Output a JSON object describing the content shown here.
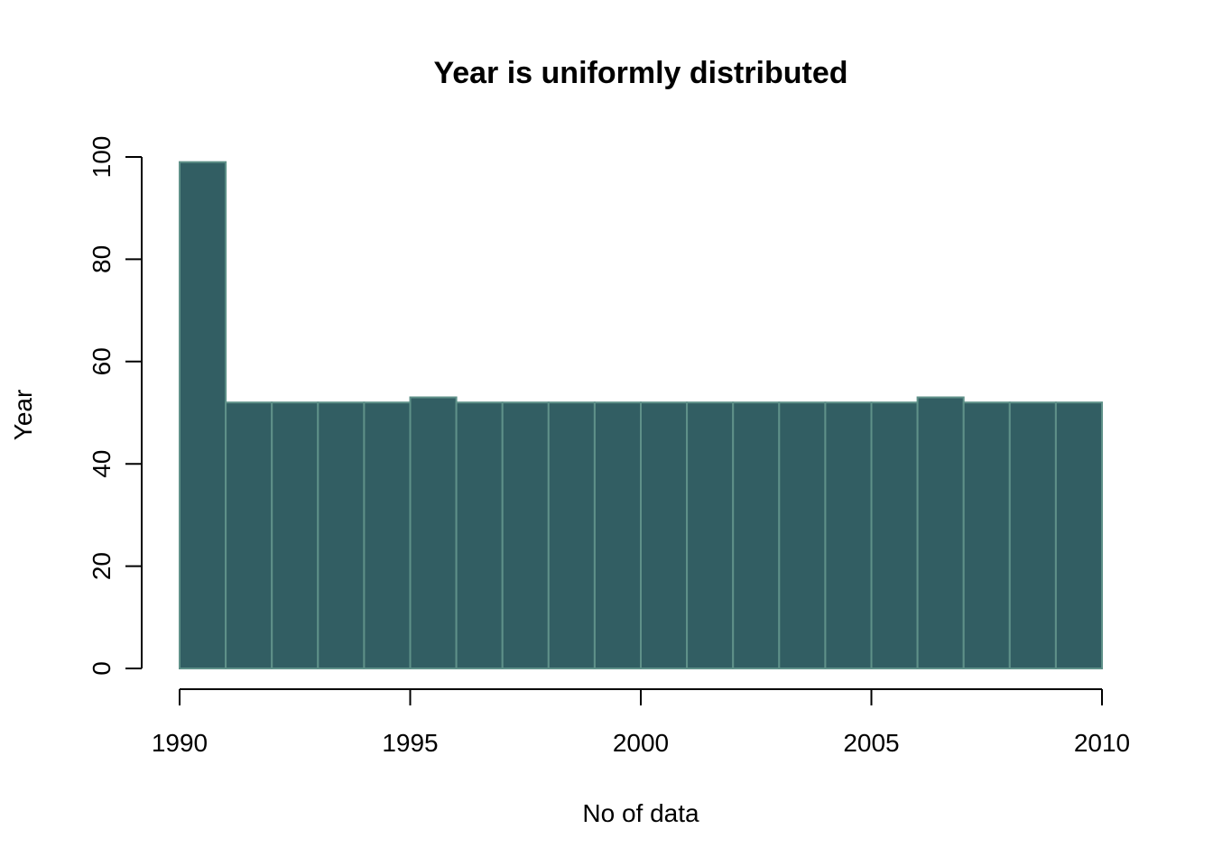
{
  "chart_data": {
    "type": "bar",
    "title": "Year is uniformly distributed",
    "xlabel": "No of data",
    "ylabel": "Year",
    "bins": [
      {
        "start": 1990,
        "end": 1991,
        "value": 99
      },
      {
        "start": 1991,
        "end": 1992,
        "value": 52
      },
      {
        "start": 1992,
        "end": 1993,
        "value": 52
      },
      {
        "start": 1993,
        "end": 1994,
        "value": 52
      },
      {
        "start": 1994,
        "end": 1995,
        "value": 52
      },
      {
        "start": 1995,
        "end": 1996,
        "value": 53
      },
      {
        "start": 1996,
        "end": 1997,
        "value": 52
      },
      {
        "start": 1997,
        "end": 1998,
        "value": 52
      },
      {
        "start": 1998,
        "end": 1999,
        "value": 52
      },
      {
        "start": 1999,
        "end": 2000,
        "value": 52
      },
      {
        "start": 2000,
        "end": 2001,
        "value": 52
      },
      {
        "start": 2001,
        "end": 2002,
        "value": 52
      },
      {
        "start": 2002,
        "end": 2003,
        "value": 52
      },
      {
        "start": 2003,
        "end": 2004,
        "value": 52
      },
      {
        "start": 2004,
        "end": 2005,
        "value": 52
      },
      {
        "start": 2005,
        "end": 2006,
        "value": 52
      },
      {
        "start": 2006,
        "end": 2007,
        "value": 53
      },
      {
        "start": 2007,
        "end": 2008,
        "value": 52
      },
      {
        "start": 2008,
        "end": 2009,
        "value": 52
      },
      {
        "start": 2009,
        "end": 2010,
        "value": 52
      }
    ],
    "xlim": [
      1990,
      2010
    ],
    "ylim": [
      0,
      100
    ],
    "x_ticks": [
      "1990",
      "1995",
      "2000",
      "2005",
      "2010"
    ],
    "y_ticks": [
      "0",
      "20",
      "40",
      "60",
      "80",
      "100"
    ],
    "grid": false,
    "bar_fill": "#325E63",
    "bar_stroke": "#5F9189"
  }
}
